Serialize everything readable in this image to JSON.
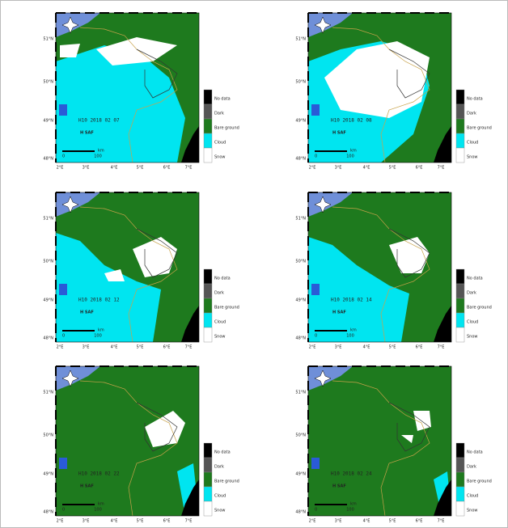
{
  "panels": [
    {
      "date": "H10 2018 02 07"
    },
    {
      "date": "H10 2018 02 08"
    },
    {
      "date": "H10 2018 02 12"
    },
    {
      "date": "H10 2018 02 14"
    },
    {
      "date": "H10 2018 02 22"
    },
    {
      "date": "H10 2018 02 24"
    }
  ],
  "lat_labels": [
    "51°N",
    "50°N",
    "49°N",
    "48°N"
  ],
  "lon_labels": [
    "2°E",
    "3°E",
    "4°E",
    "5°E",
    "6°E",
    "7°E"
  ],
  "legend": [
    "No data",
    "Dark",
    "Bare ground",
    "Cloud",
    "Snow"
  ],
  "scale": {
    "zero": "0",
    "distance": "100",
    "unit": "km"
  },
  "logo": "H SAF"
}
